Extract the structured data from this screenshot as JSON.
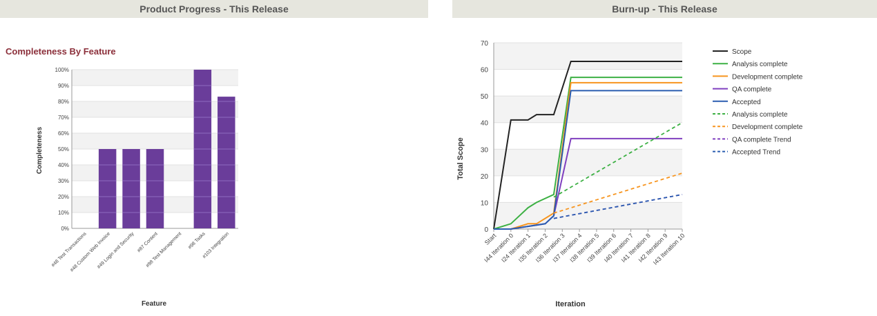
{
  "panels": {
    "left_header": "Product Progress - This Release",
    "right_header": "Burn-up - This Release"
  },
  "colors": {
    "header_bg": "#e6e6de",
    "bar": "#6a3d9a",
    "left_title": "#8b2f3a",
    "scope": "#222222",
    "analysis": "#3cb043",
    "development": "#f7941d",
    "qa": "#7f3fbf",
    "accepted": "#2a5db0"
  },
  "chart_data": [
    {
      "type": "bar",
      "title": "Completeness By Feature",
      "xlabel": "Feature",
      "ylabel": "Completeness",
      "ylim": [
        0,
        100
      ],
      "yticks": [
        "0%",
        "10%",
        "20%",
        "30%",
        "40%",
        "50%",
        "60%",
        "70%",
        "80%",
        "90%",
        "100%"
      ],
      "categories": [
        "#48 Test Transactions",
        "#48 Custom Web Invoice",
        "#49 Login and Security",
        "#87 Content",
        "#98 Test Management",
        "#98 Tasks",
        "#103 Integration"
      ],
      "values": [
        0,
        50,
        50,
        50,
        0,
        100,
        83
      ]
    },
    {
      "type": "line",
      "xlabel": "Iteration",
      "ylabel": "Total Scope",
      "ylim": [
        0,
        70
      ],
      "yticks": [
        0,
        10,
        20,
        30,
        40,
        50,
        60,
        70
      ],
      "categories": [
        "Start",
        "I44 Iteration 0",
        "I24 Iteration 1",
        "I35 Iteration 2",
        "I36 Iteration 3",
        "I37 Iteration 4",
        "I38 Iteration 5",
        "I39 Iteration 6",
        "I40 Iteration 7",
        "I41 Iteration 8",
        "I42 Iteration 9",
        "I43 Iteration 10"
      ],
      "legend_position": "right",
      "series": [
        {
          "name": "Scope",
          "style": "solid",
          "color": "#222222",
          "points": [
            [
              0,
              0
            ],
            [
              1,
              41
            ],
            [
              2,
              41
            ],
            [
              2.5,
              43
            ],
            [
              3.5,
              43
            ],
            [
              4.5,
              63
            ],
            [
              11,
              63
            ]
          ]
        },
        {
          "name": "Analysis complete",
          "style": "solid",
          "color": "#3cb043",
          "points": [
            [
              0,
              0
            ],
            [
              1,
              2
            ],
            [
              2,
              8
            ],
            [
              2.5,
              10
            ],
            [
              3.5,
              13
            ],
            [
              4.5,
              57
            ],
            [
              11,
              57
            ]
          ]
        },
        {
          "name": "Development complete",
          "style": "solid",
          "color": "#f7941d",
          "points": [
            [
              0,
              0
            ],
            [
              1,
              0
            ],
            [
              2,
              2
            ],
            [
              2.5,
              2
            ],
            [
              3.5,
              6
            ],
            [
              4.5,
              55
            ],
            [
              11,
              55
            ]
          ]
        },
        {
          "name": "QA complete",
          "style": "solid",
          "color": "#7f3fbf",
          "points": [
            [
              0,
              0
            ],
            [
              1,
              0
            ],
            [
              2,
              1
            ],
            [
              3,
              2
            ],
            [
              3.5,
              5
            ],
            [
              4.5,
              34
            ],
            [
              11,
              34
            ]
          ]
        },
        {
          "name": "Accepted",
          "style": "solid",
          "color": "#2a5db0",
          "points": [
            [
              0,
              0
            ],
            [
              1,
              0
            ],
            [
              2,
              1
            ],
            [
              3,
              2
            ],
            [
              3.5,
              5
            ],
            [
              4.5,
              52
            ],
            [
              11,
              52
            ]
          ]
        },
        {
          "name": "Analysis complete",
          "style": "dashed",
          "color": "#3cb043",
          "points": [
            [
              3.5,
              12
            ],
            [
              11,
              40
            ]
          ]
        },
        {
          "name": "Development complete",
          "style": "dashed",
          "color": "#f7941d",
          "points": [
            [
              3.5,
              6
            ],
            [
              11,
              21
            ]
          ]
        },
        {
          "name": "QA complete Trend",
          "style": "dashed",
          "color": "#7f3fbf",
          "points": [
            [
              3.5,
              4
            ],
            [
              11,
              13
            ]
          ]
        },
        {
          "name": "Accepted Trend",
          "style": "dashed",
          "color": "#2a5db0",
          "points": [
            [
              3.5,
              4
            ],
            [
              11,
              13
            ]
          ]
        }
      ]
    }
  ]
}
